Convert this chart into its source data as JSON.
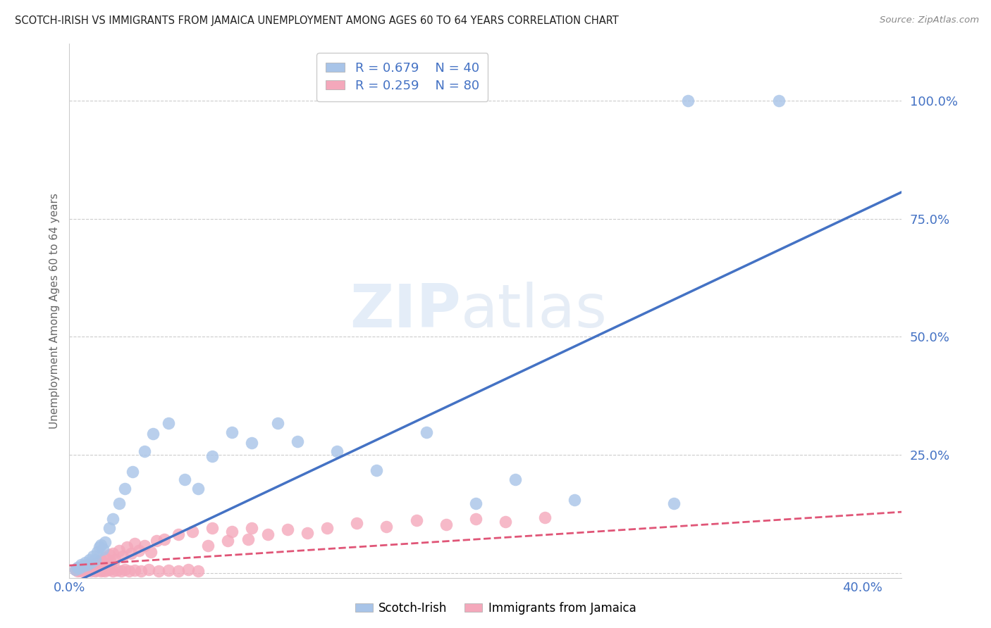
{
  "title": "SCOTCH-IRISH VS IMMIGRANTS FROM JAMAICA UNEMPLOYMENT AMONG AGES 60 TO 64 YEARS CORRELATION CHART",
  "source": "Source: ZipAtlas.com",
  "ylabel": "Unemployment Among Ages 60 to 64 years",
  "series1_name": "Scotch-Irish",
  "series1_color": "#a8c4e8",
  "series1_line_color": "#4472c4",
  "series1_R": "0.679",
  "series1_N": "40",
  "series2_name": "Immigrants from Jamaica",
  "series2_color": "#f4a8bb",
  "series2_line_color": "#e05577",
  "series2_R": "0.259",
  "series2_N": "80",
  "xlim": [
    0.0,
    0.42
  ],
  "ylim": [
    -0.01,
    1.12
  ],
  "yticks": [
    0.0,
    0.25,
    0.5,
    0.75,
    1.0
  ],
  "ytick_labels": [
    "",
    "25.0%",
    "50.0%",
    "75.0%",
    "100.0%"
  ],
  "xtick_vals": [
    0.0,
    0.4
  ],
  "xtick_labels": [
    "0.0%",
    "40.0%"
  ],
  "axis_color": "#4472c4",
  "title_color": "#222222",
  "grid_color": "#cccccc",
  "bg_color": "#ffffff",
  "legend_text_color": "#4472c4",
  "watermark_color": "#dce8f5",
  "slope_si": 1.98,
  "intercept_si": -0.025,
  "slope_ja": 0.27,
  "intercept_ja": 0.016,
  "scotch_irish_x": [
    0.003,
    0.004,
    0.005,
    0.006,
    0.007,
    0.008,
    0.009,
    0.01,
    0.011,
    0.012,
    0.013,
    0.014,
    0.015,
    0.016,
    0.017,
    0.018,
    0.02,
    0.022,
    0.025,
    0.028,
    0.032,
    0.038,
    0.042,
    0.05,
    0.058,
    0.065,
    0.072,
    0.082,
    0.092,
    0.105,
    0.115,
    0.135,
    0.155,
    0.18,
    0.205,
    0.225,
    0.255,
    0.305,
    0.312,
    0.358
  ],
  "scotch_irish_y": [
    0.008,
    0.012,
    0.01,
    0.018,
    0.015,
    0.022,
    0.018,
    0.028,
    0.022,
    0.035,
    0.028,
    0.045,
    0.055,
    0.06,
    0.05,
    0.065,
    0.095,
    0.115,
    0.148,
    0.178,
    0.215,
    0.258,
    0.295,
    0.318,
    0.198,
    0.178,
    0.248,
    0.298,
    0.275,
    0.318,
    0.278,
    0.258,
    0.218,
    0.298,
    0.148,
    0.198,
    0.155,
    0.148,
    1.0,
    1.0
  ],
  "jamaica_x": [
    0.003,
    0.004,
    0.005,
    0.006,
    0.007,
    0.008,
    0.009,
    0.01,
    0.011,
    0.012,
    0.013,
    0.014,
    0.015,
    0.016,
    0.017,
    0.018,
    0.019,
    0.02,
    0.021,
    0.022,
    0.023,
    0.025,
    0.027,
    0.029,
    0.031,
    0.033,
    0.035,
    0.038,
    0.041,
    0.044,
    0.004,
    0.005,
    0.006,
    0.007,
    0.008,
    0.009,
    0.01,
    0.011,
    0.012,
    0.013,
    0.014,
    0.015,
    0.016,
    0.017,
    0.018,
    0.019,
    0.02,
    0.022,
    0.024,
    0.026,
    0.028,
    0.03,
    0.033,
    0.036,
    0.04,
    0.045,
    0.05,
    0.055,
    0.06,
    0.065,
    0.07,
    0.08,
    0.09,
    0.1,
    0.11,
    0.12,
    0.13,
    0.145,
    0.16,
    0.175,
    0.19,
    0.205,
    0.22,
    0.24,
    0.048,
    0.055,
    0.062,
    0.072,
    0.082,
    0.092
  ],
  "jamaica_y": [
    0.008,
    0.01,
    0.012,
    0.008,
    0.015,
    0.01,
    0.018,
    0.012,
    0.015,
    0.018,
    0.012,
    0.022,
    0.025,
    0.028,
    0.015,
    0.032,
    0.018,
    0.038,
    0.022,
    0.042,
    0.028,
    0.048,
    0.035,
    0.055,
    0.042,
    0.062,
    0.048,
    0.058,
    0.045,
    0.068,
    0.005,
    0.006,
    0.004,
    0.007,
    0.005,
    0.006,
    0.008,
    0.004,
    0.007,
    0.005,
    0.006,
    0.008,
    0.005,
    0.006,
    0.004,
    0.007,
    0.008,
    0.005,
    0.006,
    0.004,
    0.007,
    0.005,
    0.006,
    0.004,
    0.007,
    0.005,
    0.006,
    0.004,
    0.008,
    0.005,
    0.058,
    0.068,
    0.072,
    0.082,
    0.092,
    0.085,
    0.095,
    0.105,
    0.098,
    0.112,
    0.102,
    0.115,
    0.108,
    0.118,
    0.072,
    0.082,
    0.088,
    0.095,
    0.088,
    0.095
  ]
}
